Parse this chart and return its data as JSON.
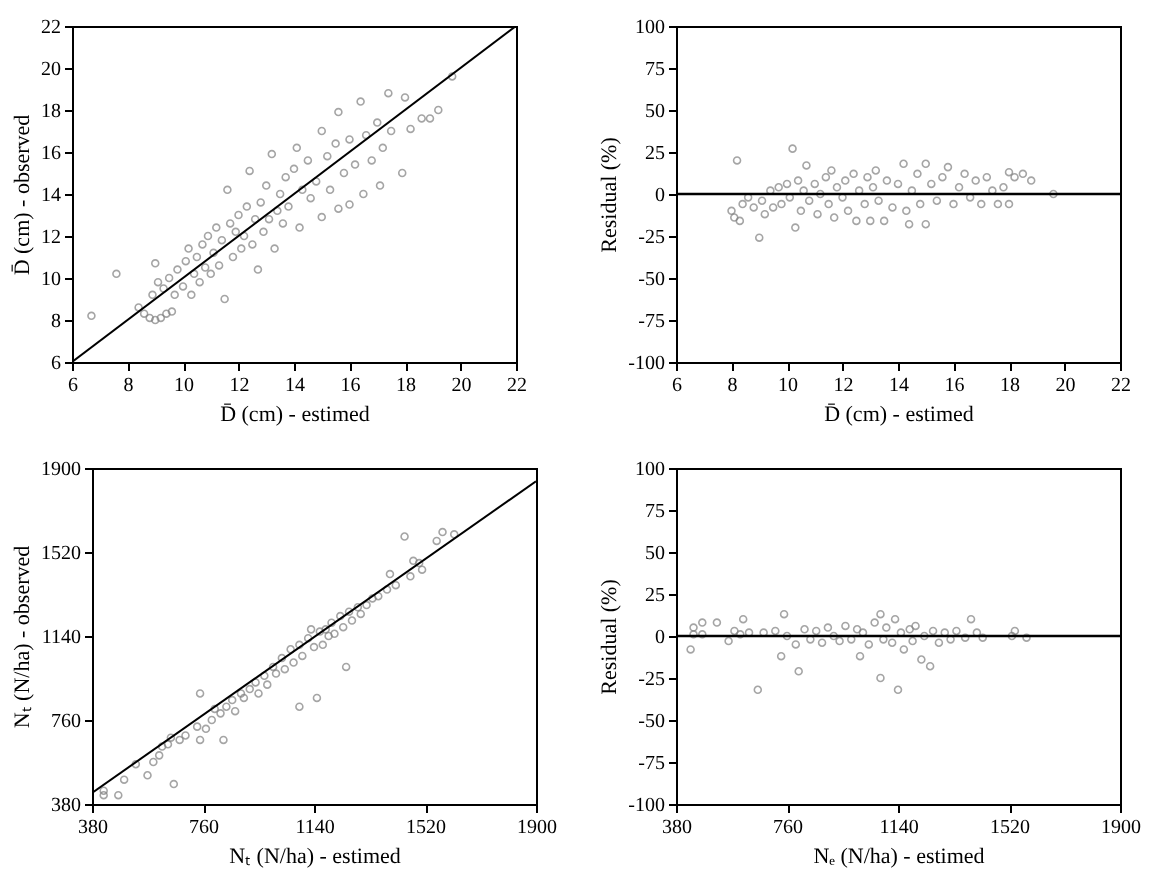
{
  "chart_data": [
    {
      "type": "scatter",
      "xlabel": "D̄ (cm) - estimed",
      "ylabel": "D̄ (cm) - observed",
      "xlim": [
        6,
        22
      ],
      "ylim": [
        6,
        22
      ],
      "xticks": [
        6,
        8,
        10,
        12,
        14,
        16,
        18,
        20,
        22
      ],
      "yticks": [
        6,
        8,
        10,
        12,
        14,
        16,
        18,
        20,
        22
      ],
      "marker": "circle",
      "series": [
        {
          "color": "#7f7f7f",
          "x": [
            6.7,
            7.6,
            8.4,
            8.6,
            8.8,
            9.0,
            9.2,
            9.4,
            9.6,
            8.9,
            9.1,
            9.0,
            9.3,
            9.5,
            9.7,
            9.8,
            10.0,
            10.1,
            10.2,
            10.3,
            10.4,
            10.5,
            10.6,
            10.7,
            10.8,
            10.9,
            11.0,
            11.1,
            11.2,
            11.3,
            11.4,
            11.5,
            11.6,
            11.7,
            11.8,
            11.9,
            12.0,
            12.1,
            12.2,
            12.3,
            12.4,
            12.5,
            12.6,
            12.7,
            12.8,
            12.9,
            13.0,
            13.1,
            13.2,
            13.3,
            13.4,
            13.5,
            13.6,
            13.7,
            13.8,
            14.0,
            14.1,
            14.2,
            14.3,
            14.5,
            14.6,
            14.8,
            15.0,
            15.0,
            15.2,
            15.3,
            15.5,
            15.6,
            15.6,
            15.8,
            16.0,
            16.0,
            16.2,
            16.4,
            16.5,
            16.6,
            16.8,
            17.0,
            17.1,
            17.2,
            17.4,
            17.5,
            17.9,
            18.0,
            18.2,
            18.6,
            18.9,
            19.2,
            19.7
          ],
          "values": [
            8.2,
            10.2,
            8.6,
            8.3,
            8.1,
            8.0,
            8.1,
            8.3,
            8.4,
            9.2,
            9.8,
            10.7,
            9.5,
            10.0,
            9.2,
            10.4,
            9.6,
            10.8,
            11.4,
            9.2,
            10.2,
            11.0,
            9.8,
            11.6,
            10.5,
            12.0,
            10.2,
            11.2,
            12.4,
            10.6,
            11.8,
            9.0,
            14.2,
            12.6,
            11.0,
            12.2,
            13.0,
            11.4,
            12.0,
            13.4,
            15.1,
            11.6,
            12.8,
            10.4,
            13.6,
            12.2,
            14.4,
            12.8,
            15.9,
            11.4,
            13.2,
            14.0,
            12.6,
            14.8,
            13.4,
            15.2,
            16.2,
            12.4,
            14.2,
            15.6,
            13.8,
            14.6,
            17.0,
            12.9,
            15.8,
            14.2,
            16.4,
            17.9,
            13.3,
            15.0,
            16.6,
            13.5,
            15.4,
            18.4,
            14.0,
            16.8,
            15.6,
            17.4,
            14.4,
            16.2,
            18.8,
            17.0,
            15.0,
            18.6,
            17.1,
            17.6,
            17.6,
            18.0,
            19.6
          ]
        },
        {
          "type": "line",
          "marker": "none",
          "color": "#000000",
          "x": [
            6,
            22
          ],
          "values": [
            6,
            22
          ]
        }
      ]
    },
    {
      "type": "scatter",
      "xlabel": "D̄ (cm) - estimed",
      "ylabel": "Residual (%)",
      "xlim": [
        6,
        22
      ],
      "ylim": [
        -100,
        100
      ],
      "xticks": [
        6,
        8,
        10,
        12,
        14,
        16,
        18,
        20,
        22
      ],
      "yticks": [
        -100,
        -75,
        -50,
        -25,
        0,
        25,
        50,
        75,
        100
      ],
      "marker": "circle",
      "ref_lines": [
        {
          "axis": "y",
          "value": 0,
          "color": "#000000"
        }
      ],
      "series": [
        {
          "color": "#7f7f7f",
          "x": [
            8.0,
            8.1,
            8.2,
            8.3,
            8.4,
            8.6,
            8.8,
            9.0,
            9.1,
            9.2,
            9.4,
            9.5,
            9.7,
            9.8,
            10.0,
            10.1,
            10.2,
            10.3,
            10.4,
            10.5,
            10.6,
            10.7,
            10.8,
            11.0,
            11.1,
            11.2,
            11.4,
            11.5,
            11.6,
            11.7,
            11.8,
            12.0,
            12.1,
            12.2,
            12.4,
            12.5,
            12.6,
            12.8,
            12.9,
            13.0,
            13.1,
            13.2,
            13.3,
            13.5,
            13.6,
            13.8,
            14.0,
            14.2,
            14.3,
            14.4,
            14.5,
            14.7,
            14.8,
            15.0,
            15.0,
            15.2,
            15.4,
            15.6,
            15.8,
            16.0,
            16.2,
            16.4,
            16.6,
            16.8,
            17.0,
            17.2,
            17.4,
            17.6,
            17.8,
            18.0,
            18.0,
            18.2,
            18.5,
            18.8,
            19.6
          ],
          "values": [
            -10,
            -14,
            20,
            -16,
            -6,
            -2,
            -8,
            -26,
            -4,
            -12,
            2,
            -8,
            4,
            -6,
            6,
            -2,
            27,
            -20,
            8,
            -10,
            2,
            17,
            -4,
            6,
            -12,
            0,
            10,
            -6,
            14,
            -14,
            4,
            -2,
            8,
            -10,
            12,
            -16,
            2,
            -6,
            10,
            -16,
            4,
            14,
            -4,
            -16,
            8,
            -8,
            6,
            18,
            -10,
            -18,
            2,
            12,
            -6,
            18,
            -18,
            6,
            -4,
            10,
            16,
            -6,
            4,
            12,
            -2,
            8,
            -6,
            10,
            2,
            -6,
            4,
            -6,
            13,
            10,
            12,
            8,
            0
          ]
        }
      ]
    },
    {
      "type": "scatter",
      "xlabel": "Nₜ (N/ha) - estimed",
      "ylabel": "Nₜ (N/ha) - observed",
      "xlim": [
        380,
        1900
      ],
      "ylim": [
        380,
        1900
      ],
      "xticks": [
        380,
        760,
        1140,
        1520,
        1900
      ],
      "yticks": [
        380,
        760,
        1140,
        1520,
        1900
      ],
      "marker": "circle",
      "series": [
        {
          "color": "#7f7f7f",
          "x": [
            420,
            420,
            470,
            490,
            530,
            570,
            590,
            610,
            620,
            640,
            650,
            660,
            680,
            700,
            740,
            750,
            750,
            770,
            790,
            800,
            820,
            830,
            840,
            860,
            870,
            890,
            900,
            920,
            940,
            950,
            970,
            980,
            1000,
            1010,
            1030,
            1040,
            1060,
            1070,
            1090,
            1090,
            1100,
            1120,
            1130,
            1140,
            1150,
            1160,
            1170,
            1180,
            1190,
            1200,
            1210,
            1230,
            1240,
            1250,
            1260,
            1270,
            1290,
            1300,
            1320,
            1340,
            1360,
            1390,
            1400,
            1420,
            1450,
            1470,
            1480,
            1500,
            1510,
            1560,
            1580,
            1620
          ],
          "values": [
            420,
            440,
            420,
            490,
            560,
            510,
            570,
            600,
            640,
            650,
            680,
            470,
            670,
            690,
            730,
            880,
            670,
            720,
            760,
            810,
            790,
            670,
            820,
            850,
            800,
            880,
            860,
            900,
            930,
            880,
            960,
            920,
            1000,
            970,
            1040,
            990,
            1080,
            1020,
            820,
            1100,
            1050,
            1130,
            1170,
            1090,
            860,
            1160,
            1100,
            1170,
            1140,
            1200,
            1150,
            1230,
            1180,
            1000,
            1250,
            1210,
            1270,
            1240,
            1280,
            1310,
            1320,
            1350,
            1420,
            1370,
            1590,
            1410,
            1480,
            1470,
            1440,
            1570,
            1610,
            1600
          ]
        },
        {
          "type": "line",
          "marker": "none",
          "color": "#000000",
          "x": [
            380,
            1900
          ],
          "values": [
            430,
            1840
          ]
        }
      ]
    },
    {
      "type": "scatter",
      "xlabel": "Nₑ (N/ha) - estimed",
      "ylabel": "Residual (%)",
      "xlim": [
        380,
        1900
      ],
      "ylim": [
        -100,
        100
      ],
      "xticks": [
        380,
        760,
        1140,
        1520,
        1900
      ],
      "yticks": [
        -100,
        -75,
        -50,
        -25,
        0,
        25,
        50,
        75,
        100
      ],
      "marker": "circle",
      "ref_lines": [
        {
          "axis": "y",
          "value": 0,
          "color": "#000000"
        }
      ],
      "series": [
        {
          "color": "#7f7f7f",
          "x": [
            430,
            440,
            440,
            470,
            470,
            520,
            560,
            580,
            600,
            610,
            630,
            660,
            680,
            720,
            740,
            750,
            760,
            790,
            800,
            820,
            840,
            860,
            880,
            900,
            920,
            940,
            960,
            980,
            1000,
            1010,
            1020,
            1040,
            1060,
            1080,
            1080,
            1090,
            1100,
            1120,
            1130,
            1140,
            1150,
            1160,
            1180,
            1190,
            1200,
            1220,
            1230,
            1250,
            1260,
            1280,
            1300,
            1320,
            1340,
            1370,
            1390,
            1410,
            1430,
            1530,
            1540,
            1580
          ],
          "values": [
            -8,
            5,
            1,
            8,
            1,
            8,
            -3,
            3,
            1,
            10,
            2,
            -32,
            2,
            3,
            -12,
            13,
            0,
            -5,
            -21,
            4,
            -2,
            3,
            -4,
            5,
            0,
            -3,
            6,
            -2,
            4,
            -12,
            2,
            -5,
            8,
            13,
            -25,
            -2,
            5,
            -4,
            10,
            -32,
            2,
            -8,
            4,
            -3,
            6,
            -14,
            0,
            -18,
            3,
            -4,
            2,
            -2,
            3,
            -1,
            10,
            2,
            -1,
            0,
            3,
            -1
          ]
        }
      ]
    }
  ]
}
